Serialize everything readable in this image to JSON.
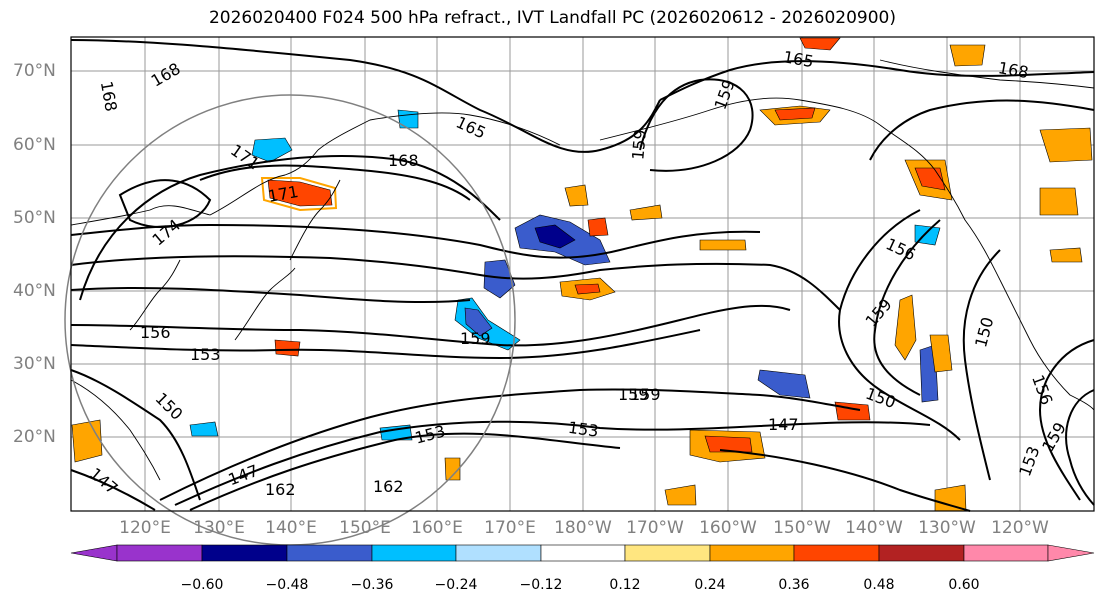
{
  "title": "2026020400 F024 500 hPa refract., IVT Landfall PC (2026020612 - 2026020900)",
  "lat_labels": [
    "70°N",
    "60°N",
    "50°N",
    "40°N",
    "30°N",
    "20°N"
  ],
  "lon_labels": [
    "120°E",
    "130°E",
    "140°E",
    "150°E",
    "160°E",
    "170°E",
    "180°W",
    "170°W",
    "160°W",
    "150°W",
    "140°W",
    "130°W",
    "120°W"
  ],
  "colorbar": {
    "colors": [
      "#9933cc",
      "#00008b",
      "#3a5ccc",
      "#00bfff",
      "#b0e0ff",
      "#ffffff",
      "#ffe680",
      "#ffa500",
      "#ff4500",
      "#b22222",
      "#ff88aa"
    ],
    "ticks": [
      "−0.60",
      "−0.48",
      "−0.36",
      "−0.24",
      "−0.12",
      "0.12",
      "0.24",
      "0.36",
      "0.48",
      "0.60"
    ]
  },
  "contour_labels": [
    "168",
    "165",
    "168",
    "168",
    "165",
    "168",
    "171",
    "174",
    "171",
    "159",
    "159",
    "156",
    "159",
    "156",
    "159",
    "150",
    "153",
    "153",
    "159",
    "150",
    "147",
    "156",
    "159",
    "153",
    "150",
    "147",
    "147",
    "162",
    "162",
    "153",
    "159"
  ]
}
